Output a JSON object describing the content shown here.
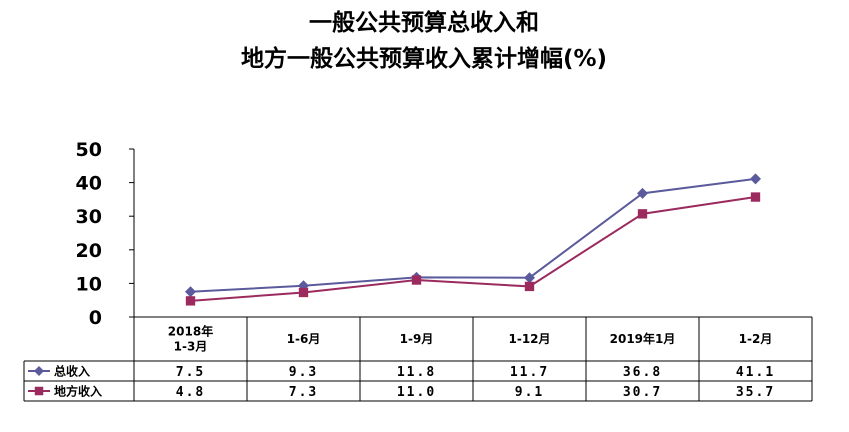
{
  "chart_data": {
    "type": "line",
    "title": [
      "一般公共预算总收入和",
      "地方一般公共预算收入累计增幅(%)"
    ],
    "categories": [
      [
        "2018年",
        "1-3月"
      ],
      [
        "1-6月"
      ],
      [
        "1-9月"
      ],
      [
        "1-12月"
      ],
      [
        "2019年1月"
      ],
      [
        "1-2月"
      ]
    ],
    "y_ticks": [
      "0",
      "10",
      "20",
      "30",
      "40",
      "50"
    ],
    "ylim": [
      0,
      50
    ],
    "grid": false,
    "series": [
      {
        "name": "总收入",
        "color": "#5a5a9c",
        "marker": "diamond",
        "values": [
          7.5,
          9.3,
          11.8,
          11.7,
          36.8,
          41.1
        ],
        "labels": [
          "7.5",
          "9.3",
          "11.8",
          "11.7",
          "36.8",
          "41.1"
        ]
      },
      {
        "name": "地方收入",
        "color": "#9b2a5e",
        "marker": "square",
        "values": [
          4.8,
          7.3,
          11.0,
          9.1,
          30.7,
          35.7
        ],
        "labels": [
          "4.8",
          "7.3",
          "11.0",
          "9.1",
          "30.7",
          "35.7"
        ]
      }
    ],
    "legend": "data-table"
  }
}
